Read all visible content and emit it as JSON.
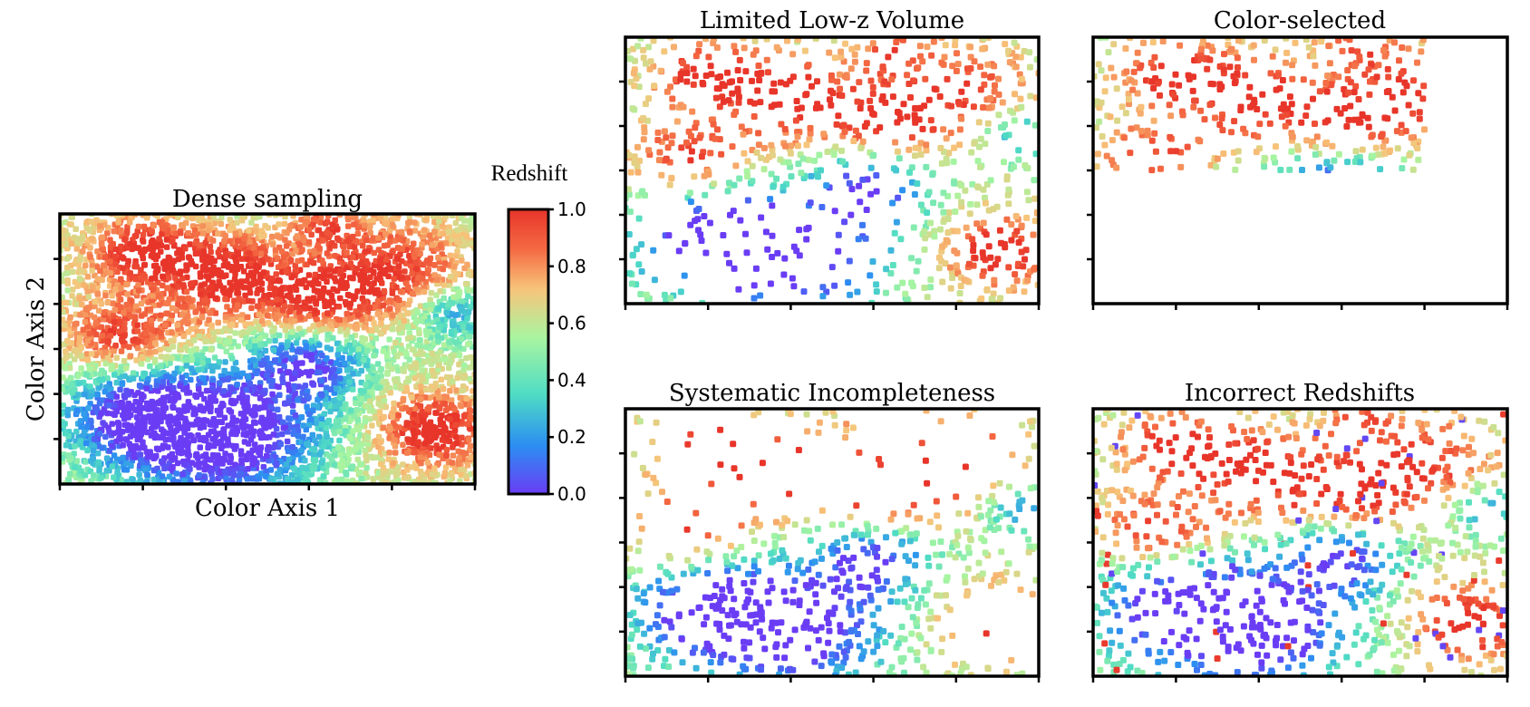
{
  "chart_data": {
    "type": "scatter",
    "colormap": {
      "name": "rainbow",
      "title": "Redshift",
      "range": [
        0.0,
        1.0
      ],
      "ticks": [
        "0.0",
        "0.2",
        "0.4",
        "0.6",
        "0.8",
        "1.0"
      ],
      "colors": [
        "#6a3df5",
        "#2c8ef2",
        "#4fdcc4",
        "#a9f5a0",
        "#f7c47a",
        "#f46a43",
        "#e8352a"
      ]
    },
    "point_color_encodes": "redshift",
    "panels": [
      {
        "id": "dense",
        "title": "Dense sampling",
        "xlabel": "Color Axis 1",
        "ylabel": "Color Axis 2",
        "xlim": [
          0,
          1
        ],
        "ylim": [
          0,
          1
        ],
        "n_points": 5200,
        "description_of_distribution": "full coverage of the field; high-redshift (red) patches in upper half and lower-right, low-redshift (purple/blue) region in lower-left centre"
      },
      {
        "id": "lowz",
        "title": "Limited Low-z Volume",
        "xlim": [
          0,
          1
        ],
        "ylim": [
          0,
          1
        ],
        "n_points": 900,
        "description_of_distribution": "sparse sampling; low-redshift points under-represented"
      },
      {
        "id": "colorsel",
        "title": "Color-selected",
        "xlim": [
          0,
          1
        ],
        "ylim": [
          0,
          1
        ],
        "selection": {
          "x_max": 0.8,
          "y_min": 0.5
        },
        "n_points": 420,
        "description_of_distribution": "only points inside the upper-left colour cut are kept"
      },
      {
        "id": "sysinc",
        "title": "Systematic Incompleteness",
        "xlim": [
          0,
          1
        ],
        "ylim": [
          0,
          1
        ],
        "n_points": 700,
        "description_of_distribution": "high-redshift points systematically missing; mostly blue/green remain"
      },
      {
        "id": "incorrect",
        "title": "Incorrect Redshifts",
        "xlim": [
          0,
          1
        ],
        "ylim": [
          0,
          1
        ],
        "n_points": 1100,
        "outlier_fraction": 0.05,
        "description_of_distribution": "same field with a fraction of points given wrong redshifts"
      }
    ]
  }
}
